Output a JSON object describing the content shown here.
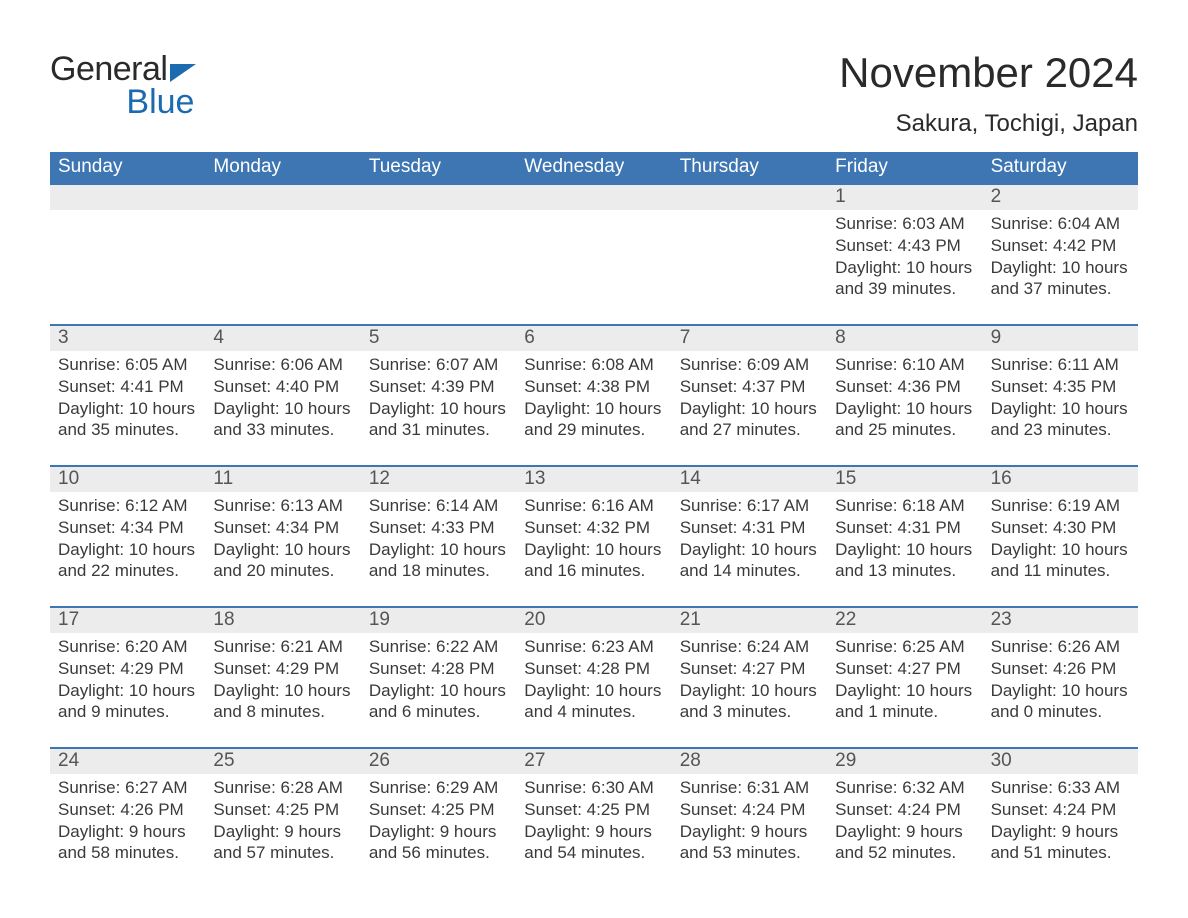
{
  "colors": {
    "blue_header": "#3d76b3",
    "blue_logo": "#1c6bb0",
    "row_stripe": "#ececec",
    "text_dark": "#3a3a3a",
    "background": "#ffffff"
  },
  "typography": {
    "font_family": "Segoe UI, Arial, Helvetica, sans-serif",
    "month_title_fontsize": 42,
    "location_fontsize": 24,
    "weekday_fontsize": 19,
    "daynum_fontsize": 19,
    "body_fontsize": 17
  },
  "logo": {
    "text_general": "General",
    "text_blue": "Blue"
  },
  "header": {
    "month_title": "November 2024",
    "location": "Sakura, Tochigi, Japan"
  },
  "weekdays": [
    "Sunday",
    "Monday",
    "Tuesday",
    "Wednesday",
    "Thursday",
    "Friday",
    "Saturday"
  ],
  "labels": {
    "sunrise": "Sunrise:",
    "sunset": "Sunset:",
    "daylight": "Daylight:"
  },
  "weeks": [
    [
      null,
      null,
      null,
      null,
      null,
      {
        "day": "1",
        "sunrise": "6:03 AM",
        "sunset": "4:43 PM",
        "daylight": "10 hours and 39 minutes."
      },
      {
        "day": "2",
        "sunrise": "6:04 AM",
        "sunset": "4:42 PM",
        "daylight": "10 hours and 37 minutes."
      }
    ],
    [
      {
        "day": "3",
        "sunrise": "6:05 AM",
        "sunset": "4:41 PM",
        "daylight": "10 hours and 35 minutes."
      },
      {
        "day": "4",
        "sunrise": "6:06 AM",
        "sunset": "4:40 PM",
        "daylight": "10 hours and 33 minutes."
      },
      {
        "day": "5",
        "sunrise": "6:07 AM",
        "sunset": "4:39 PM",
        "daylight": "10 hours and 31 minutes."
      },
      {
        "day": "6",
        "sunrise": "6:08 AM",
        "sunset": "4:38 PM",
        "daylight": "10 hours and 29 minutes."
      },
      {
        "day": "7",
        "sunrise": "6:09 AM",
        "sunset": "4:37 PM",
        "daylight": "10 hours and 27 minutes."
      },
      {
        "day": "8",
        "sunrise": "6:10 AM",
        "sunset": "4:36 PM",
        "daylight": "10 hours and 25 minutes."
      },
      {
        "day": "9",
        "sunrise": "6:11 AM",
        "sunset": "4:35 PM",
        "daylight": "10 hours and 23 minutes."
      }
    ],
    [
      {
        "day": "10",
        "sunrise": "6:12 AM",
        "sunset": "4:34 PM",
        "daylight": "10 hours and 22 minutes."
      },
      {
        "day": "11",
        "sunrise": "6:13 AM",
        "sunset": "4:34 PM",
        "daylight": "10 hours and 20 minutes."
      },
      {
        "day": "12",
        "sunrise": "6:14 AM",
        "sunset": "4:33 PM",
        "daylight": "10 hours and 18 minutes."
      },
      {
        "day": "13",
        "sunrise": "6:16 AM",
        "sunset": "4:32 PM",
        "daylight": "10 hours and 16 minutes."
      },
      {
        "day": "14",
        "sunrise": "6:17 AM",
        "sunset": "4:31 PM",
        "daylight": "10 hours and 14 minutes."
      },
      {
        "day": "15",
        "sunrise": "6:18 AM",
        "sunset": "4:31 PM",
        "daylight": "10 hours and 13 minutes."
      },
      {
        "day": "16",
        "sunrise": "6:19 AM",
        "sunset": "4:30 PM",
        "daylight": "10 hours and 11 minutes."
      }
    ],
    [
      {
        "day": "17",
        "sunrise": "6:20 AM",
        "sunset": "4:29 PM",
        "daylight": "10 hours and 9 minutes."
      },
      {
        "day": "18",
        "sunrise": "6:21 AM",
        "sunset": "4:29 PM",
        "daylight": "10 hours and 8 minutes."
      },
      {
        "day": "19",
        "sunrise": "6:22 AM",
        "sunset": "4:28 PM",
        "daylight": "10 hours and 6 minutes."
      },
      {
        "day": "20",
        "sunrise": "6:23 AM",
        "sunset": "4:28 PM",
        "daylight": "10 hours and 4 minutes."
      },
      {
        "day": "21",
        "sunrise": "6:24 AM",
        "sunset": "4:27 PM",
        "daylight": "10 hours and 3 minutes."
      },
      {
        "day": "22",
        "sunrise": "6:25 AM",
        "sunset": "4:27 PM",
        "daylight": "10 hours and 1 minute."
      },
      {
        "day": "23",
        "sunrise": "6:26 AM",
        "sunset": "4:26 PM",
        "daylight": "10 hours and 0 minutes."
      }
    ],
    [
      {
        "day": "24",
        "sunrise": "6:27 AM",
        "sunset": "4:26 PM",
        "daylight": "9 hours and 58 minutes."
      },
      {
        "day": "25",
        "sunrise": "6:28 AM",
        "sunset": "4:25 PM",
        "daylight": "9 hours and 57 minutes."
      },
      {
        "day": "26",
        "sunrise": "6:29 AM",
        "sunset": "4:25 PM",
        "daylight": "9 hours and 56 minutes."
      },
      {
        "day": "27",
        "sunrise": "6:30 AM",
        "sunset": "4:25 PM",
        "daylight": "9 hours and 54 minutes."
      },
      {
        "day": "28",
        "sunrise": "6:31 AM",
        "sunset": "4:24 PM",
        "daylight": "9 hours and 53 minutes."
      },
      {
        "day": "29",
        "sunrise": "6:32 AM",
        "sunset": "4:24 PM",
        "daylight": "9 hours and 52 minutes."
      },
      {
        "day": "30",
        "sunrise": "6:33 AM",
        "sunset": "4:24 PM",
        "daylight": "9 hours and 51 minutes."
      }
    ]
  ]
}
